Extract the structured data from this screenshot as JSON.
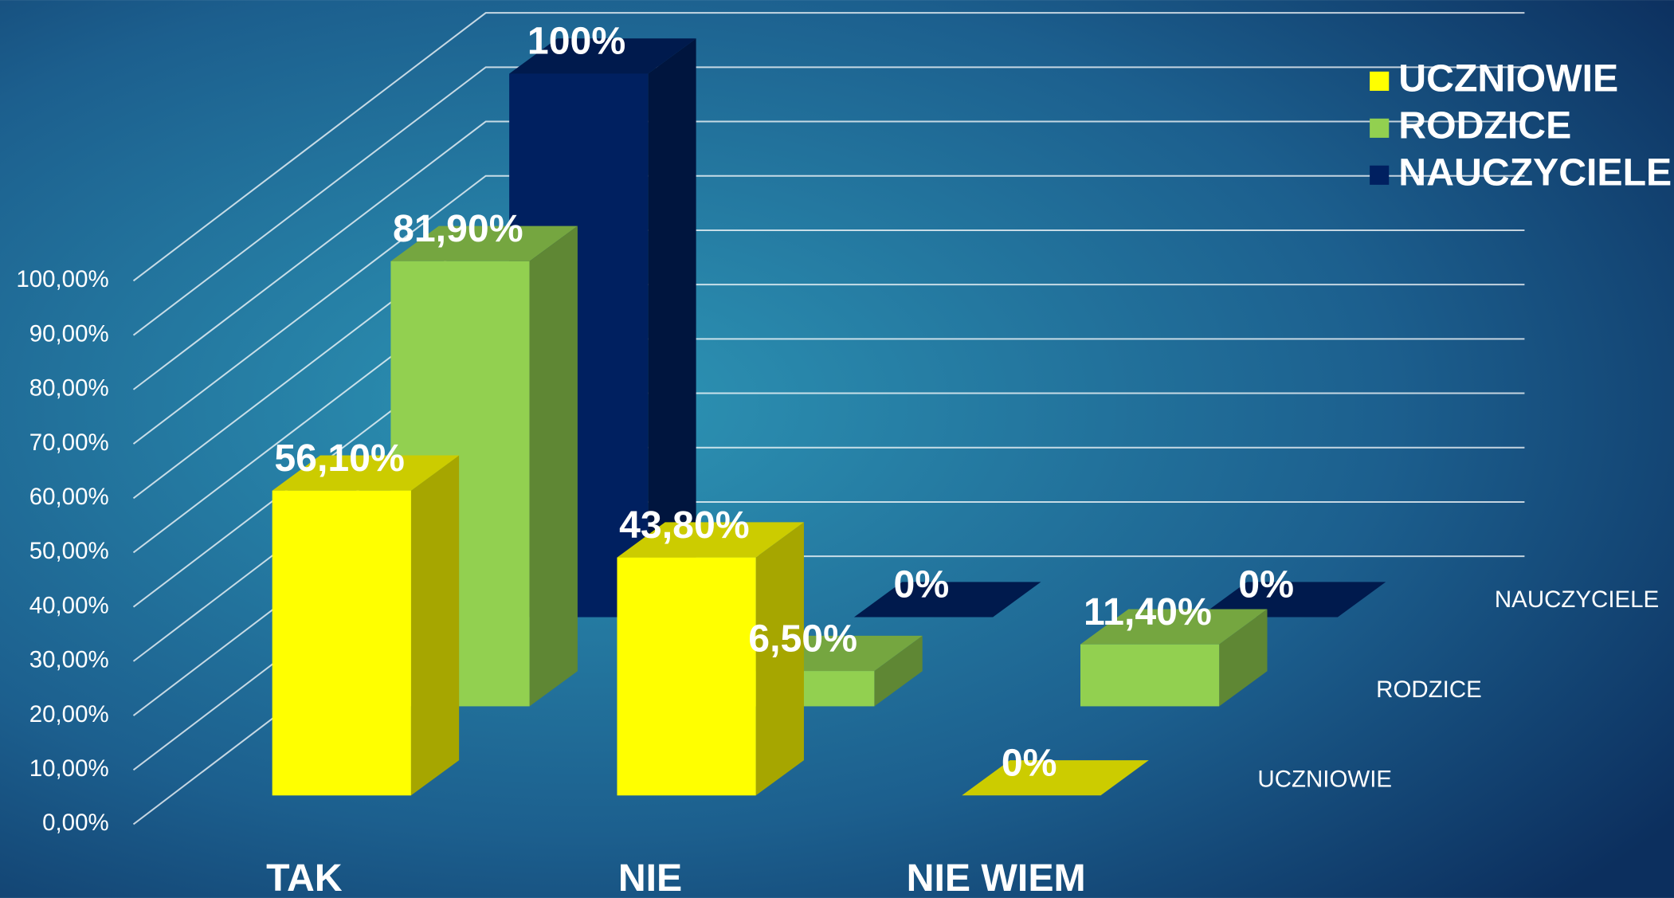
{
  "chart_data": {
    "type": "bar3d",
    "categories": [
      "TAK",
      "NIE",
      "NIE WIEM"
    ],
    "series": [
      {
        "name": "UCZNIOWIE",
        "color": "#ffff00",
        "values": [
          56.1,
          43.8,
          0
        ],
        "value_labels": [
          "56,10%",
          "43,80%",
          "0%"
        ]
      },
      {
        "name": "RODZICE",
        "color": "#92d050",
        "values": [
          81.9,
          6.5,
          11.4
        ],
        "value_labels": [
          "81,90%",
          "6,50%",
          "11,40%"
        ]
      },
      {
        "name": "NAUCZYCIELE",
        "color": "#002060",
        "values": [
          100,
          0,
          0
        ],
        "value_labels": [
          "100%",
          "0%",
          "0%"
        ]
      }
    ],
    "ylim": [
      0,
      100
    ],
    "yticks": [
      {
        "value": 0,
        "label": "0,00%"
      },
      {
        "value": 10,
        "label": "10,00%"
      },
      {
        "value": 20,
        "label": "20,00%"
      },
      {
        "value": 30,
        "label": "30,00%"
      },
      {
        "value": 40,
        "label": "40,00%"
      },
      {
        "value": 50,
        "label": "50,00%"
      },
      {
        "value": 60,
        "label": "60,00%"
      },
      {
        "value": 70,
        "label": "70,00%"
      },
      {
        "value": 80,
        "label": "80,00%"
      },
      {
        "value": 90,
        "label": "90,00%"
      },
      {
        "value": 100,
        "label": "100,00%"
      }
    ],
    "grid": true,
    "legend": "top-right"
  }
}
